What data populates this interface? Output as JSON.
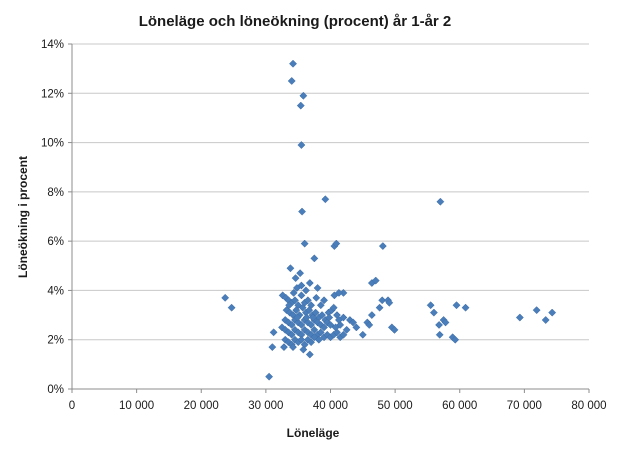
{
  "chart_data": {
    "type": "scatter",
    "title": "Löneläge och löneökning (procent) år 1-år 2",
    "xlabel": "Löneläge",
    "ylabel": "Löneökning i procent",
    "xlim": [
      0,
      80000
    ],
    "ylim": [
      0,
      14
    ],
    "x_ticks": [
      0,
      10000,
      20000,
      30000,
      40000,
      50000,
      60000,
      70000,
      80000
    ],
    "x_tick_labels": [
      "0",
      "10 000",
      "20 000",
      "30 000",
      "40 000",
      "50 000",
      "60 000",
      "70 000",
      "80 000"
    ],
    "y_ticks": [
      0,
      2,
      4,
      6,
      8,
      10,
      12,
      14
    ],
    "y_tick_labels": [
      "0%",
      "2%",
      "4%",
      "6%",
      "8%",
      "10%",
      "12%",
      "14%"
    ],
    "grid": "horizontal",
    "legend": "none",
    "marker": "diamond",
    "marker_color": "#4A7EBB",
    "points": [
      [
        34200,
        13.2
      ],
      [
        34000,
        12.5
      ],
      [
        35800,
        11.9
      ],
      [
        35400,
        11.5
      ],
      [
        35500,
        9.9
      ],
      [
        39200,
        7.7
      ],
      [
        35600,
        7.2
      ],
      [
        57000,
        7.6
      ],
      [
        36000,
        5.9
      ],
      [
        40600,
        5.8
      ],
      [
        40900,
        5.9
      ],
      [
        48100,
        5.8
      ],
      [
        37500,
        5.3
      ],
      [
        33800,
        4.9
      ],
      [
        35300,
        4.7
      ],
      [
        34600,
        4.5
      ],
      [
        36800,
        4.3
      ],
      [
        46400,
        4.3
      ],
      [
        47000,
        4.4
      ],
      [
        42000,
        3.9
      ],
      [
        40600,
        3.8
      ],
      [
        41300,
        3.9
      ],
      [
        48000,
        3.6
      ],
      [
        48900,
        3.6
      ],
      [
        47600,
        3.3
      ],
      [
        49100,
        3.5
      ],
      [
        46400,
        3.0
      ],
      [
        45700,
        2.7
      ],
      [
        49500,
        2.5
      ],
      [
        49900,
        2.4
      ],
      [
        23700,
        3.7
      ],
      [
        24700,
        3.3
      ],
      [
        31200,
        2.3
      ],
      [
        31000,
        1.7
      ],
      [
        30500,
        0.5
      ],
      [
        32600,
        3.8
      ],
      [
        33100,
        3.7
      ],
      [
        33500,
        3.6
      ],
      [
        34000,
        3.5
      ],
      [
        34500,
        3.6
      ],
      [
        35000,
        3.4
      ],
      [
        35500,
        3.8
      ],
      [
        36000,
        3.5
      ],
      [
        36500,
        3.6
      ],
      [
        37000,
        3.4
      ],
      [
        33200,
        3.2
      ],
      [
        33700,
        3.1
      ],
      [
        34200,
        3.0
      ],
      [
        34700,
        3.2
      ],
      [
        35200,
        3.0
      ],
      [
        35700,
        3.3
      ],
      [
        36200,
        3.1
      ],
      [
        36700,
        3.2
      ],
      [
        37200,
        3.0
      ],
      [
        37700,
        3.1
      ],
      [
        38200,
        2.9
      ],
      [
        38700,
        3.0
      ],
      [
        39200,
        2.8
      ],
      [
        39700,
        3.1
      ],
      [
        40200,
        3.2
      ],
      [
        33000,
        2.8
      ],
      [
        33500,
        2.7
      ],
      [
        34000,
        2.6
      ],
      [
        34500,
        2.8
      ],
      [
        35000,
        2.7
      ],
      [
        35500,
        2.6
      ],
      [
        36000,
        2.8
      ],
      [
        36500,
        2.7
      ],
      [
        37000,
        2.6
      ],
      [
        37500,
        2.8
      ],
      [
        38000,
        2.7
      ],
      [
        38500,
        2.6
      ],
      [
        39000,
        2.5
      ],
      [
        39500,
        2.7
      ],
      [
        40000,
        2.6
      ],
      [
        32500,
        2.5
      ],
      [
        33000,
        2.4
      ],
      [
        33500,
        2.3
      ],
      [
        34000,
        2.2
      ],
      [
        34500,
        2.4
      ],
      [
        35000,
        2.3
      ],
      [
        35500,
        2.2
      ],
      [
        36000,
        2.4
      ],
      [
        36500,
        2.3
      ],
      [
        37000,
        2.2
      ],
      [
        37500,
        2.4
      ],
      [
        38000,
        2.2
      ],
      [
        38500,
        2.3
      ],
      [
        39000,
        2.1
      ],
      [
        39500,
        2.2
      ],
      [
        40000,
        2.1
      ],
      [
        40500,
        2.2
      ],
      [
        41000,
        2.3
      ],
      [
        41500,
        2.1
      ],
      [
        42000,
        2.2
      ],
      [
        33000,
        2.0
      ],
      [
        33500,
        1.9
      ],
      [
        34000,
        1.8
      ],
      [
        34500,
        2.0
      ],
      [
        35000,
        1.9
      ],
      [
        35500,
        2.0
      ],
      [
        36000,
        1.8
      ],
      [
        36500,
        2.0
      ],
      [
        37000,
        1.9
      ],
      [
        37500,
        2.1
      ],
      [
        32800,
        1.7
      ],
      [
        34200,
        1.7
      ],
      [
        35800,
        1.6
      ],
      [
        36800,
        1.4
      ],
      [
        38200,
        2.0
      ],
      [
        40800,
        2.5
      ],
      [
        41500,
        2.6
      ],
      [
        42500,
        2.4
      ],
      [
        43000,
        2.8
      ],
      [
        43500,
        2.7
      ],
      [
        44000,
        2.5
      ],
      [
        45000,
        2.2
      ],
      [
        46000,
        2.6
      ],
      [
        42000,
        2.9
      ],
      [
        40500,
        3.3
      ],
      [
        41000,
        3.0
      ],
      [
        39000,
        3.6
      ],
      [
        38500,
        3.4
      ],
      [
        37800,
        3.7
      ],
      [
        38000,
        4.1
      ],
      [
        36200,
        4.0
      ],
      [
        35500,
        4.2
      ],
      [
        34800,
        4.1
      ],
      [
        34300,
        3.9
      ],
      [
        33600,
        3.4
      ],
      [
        34900,
        2.9
      ],
      [
        36300,
        2.9
      ],
      [
        37300,
        2.9
      ],
      [
        39800,
        2.9
      ],
      [
        41300,
        2.8
      ],
      [
        55500,
        3.4
      ],
      [
        56000,
        3.1
      ],
      [
        56800,
        2.6
      ],
      [
        57500,
        2.8
      ],
      [
        56900,
        2.2
      ],
      [
        58900,
        2.1
      ],
      [
        59300,
        2.0
      ],
      [
        59500,
        3.4
      ],
      [
        60900,
        3.3
      ],
      [
        57800,
        2.7
      ],
      [
        69300,
        2.9
      ],
      [
        71900,
        3.2
      ],
      [
        73300,
        2.8
      ],
      [
        74300,
        3.1
      ]
    ]
  }
}
